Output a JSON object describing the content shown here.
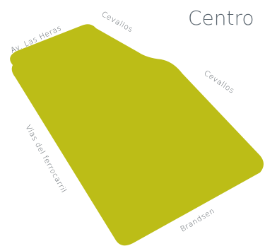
{
  "title": "Centro",
  "zone": {
    "fill_color": "#bcbd17"
  },
  "streets": {
    "av_las_heras": "Av. Las Heras",
    "cevallos_top": "Cevallos",
    "cevallos_right": "Cevallos",
    "vias_del_ferrocarril": "Vías del ferrocarril",
    "brandsen": "Brandsen"
  }
}
